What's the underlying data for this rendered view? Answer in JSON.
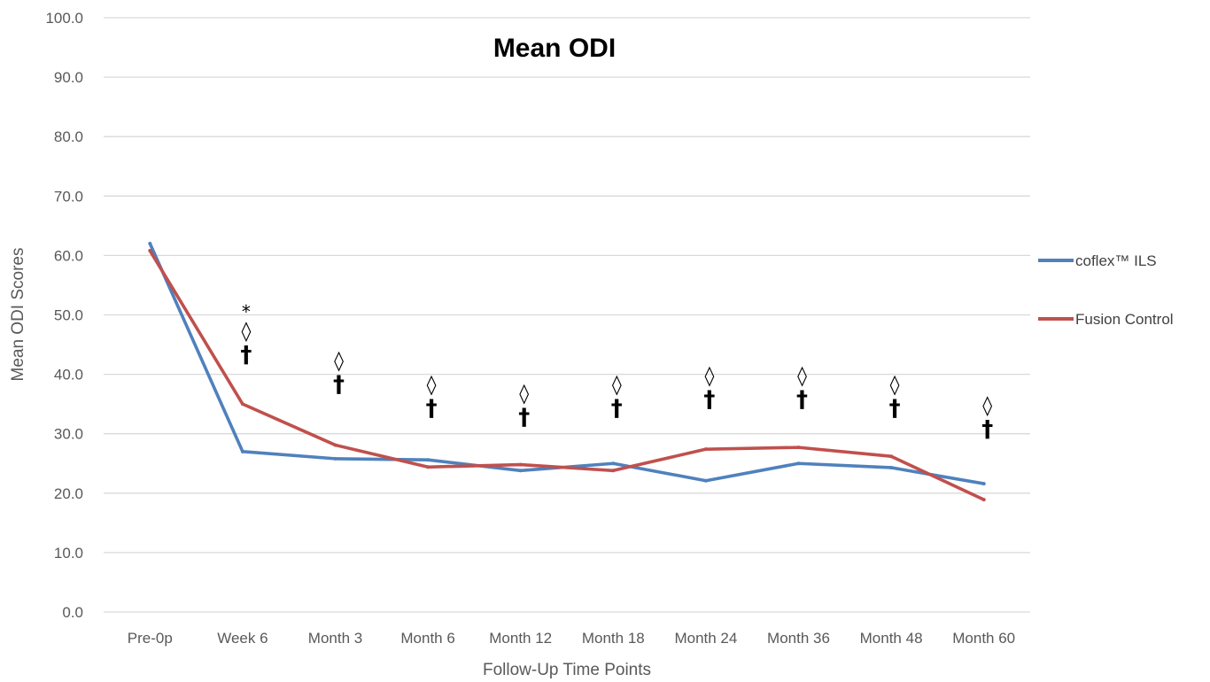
{
  "chart_data": {
    "type": "line",
    "title": "Mean ODI",
    "xlabel": "Follow-Up Time Points",
    "ylabel": "Mean ODI Scores",
    "ylim": [
      0,
      100
    ],
    "yticks": [
      "0.0",
      "10.0",
      "20.0",
      "30.0",
      "40.0",
      "50.0",
      "60.0",
      "70.0",
      "80.0",
      "90.0",
      "100.0"
    ],
    "categories": [
      "Pre-0p",
      "Week 6",
      "Month 3",
      "Month 6",
      "Month 12",
      "Month 18",
      "Month 24",
      "Month 36",
      "Month 48",
      "Month 60"
    ],
    "grid": true,
    "legend_position": "right",
    "series": [
      {
        "name": "coflex™ ILS",
        "color": "#4F81BD",
        "values": [
          62.0,
          27.0,
          25.8,
          25.6,
          23.8,
          25.0,
          22.1,
          25.0,
          24.3,
          21.6
        ]
      },
      {
        "name": "Fusion Control",
        "color": "#C0504D",
        "values": [
          60.8,
          35.0,
          28.1,
          24.4,
          24.8,
          23.8,
          27.4,
          27.7,
          26.2,
          18.9
        ]
      }
    ],
    "annotations": [
      {
        "category": "Week 6",
        "symbols": [
          "*",
          "◊",
          "†"
        ],
        "y": 42
      },
      {
        "category": "Month 3",
        "symbols": [
          "◊",
          "†"
        ],
        "y": 37
      },
      {
        "category": "Month 6",
        "symbols": [
          "◊",
          "†"
        ],
        "y": 33
      },
      {
        "category": "Month 12",
        "symbols": [
          "◊",
          "†"
        ],
        "y": 31.5
      },
      {
        "category": "Month 18",
        "symbols": [
          "◊",
          "†"
        ],
        "y": 33
      },
      {
        "category": "Month 24",
        "symbols": [
          "◊",
          "†"
        ],
        "y": 34.5
      },
      {
        "category": "Month 36",
        "symbols": [
          "◊",
          "†"
        ],
        "y": 34.5
      },
      {
        "category": "Month 48",
        "symbols": [
          "◊",
          "†"
        ],
        "y": 33
      },
      {
        "category": "Month 60",
        "symbols": [
          "◊",
          "†"
        ],
        "y": 29.5
      }
    ]
  }
}
